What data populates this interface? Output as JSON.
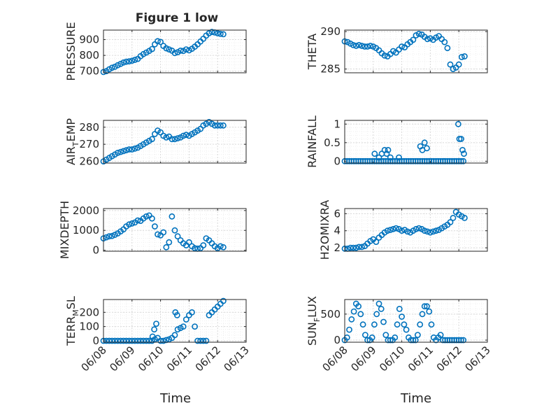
{
  "figure": {
    "title": "Figure 1 low",
    "xlabel": "Time",
    "colors": {
      "marker": "#0072BD",
      "axis": "#262626",
      "grid": "#d9d9d9"
    },
    "x_ticks": [
      "06/08",
      "06/09",
      "06/10",
      "06/11",
      "06/12",
      "06/13"
    ]
  },
  "chart_data": [
    {
      "type": "scatter",
      "panel": "pressure",
      "ylabel": "PRESSURE",
      "ylim": [
        690,
        960
      ],
      "yticks": [
        700,
        800,
        900
      ],
      "ytick_labels": [
        "700",
        "800",
        "900"
      ],
      "xlim": [
        0,
        5
      ],
      "grid": true,
      "x": [
        0.0,
        0.1,
        0.2,
        0.3,
        0.4,
        0.5,
        0.6,
        0.7,
        0.8,
        0.9,
        1.0,
        1.1,
        1.2,
        1.3,
        1.4,
        1.5,
        1.6,
        1.7,
        1.8,
        1.9,
        2.0,
        2.1,
        2.2,
        2.3,
        2.4,
        2.5,
        2.6,
        2.7,
        2.8,
        2.9,
        3.0,
        3.1,
        3.2,
        3.3,
        3.4,
        3.5,
        3.6,
        3.7,
        3.8,
        3.9,
        4.0,
        4.1,
        4.2
      ],
      "y": [
        695,
        700,
        712,
        722,
        728,
        738,
        746,
        755,
        760,
        762,
        766,
        772,
        778,
        795,
        808,
        818,
        828,
        840,
        870,
        890,
        885,
        860,
        845,
        838,
        830,
        815,
        820,
        830,
        828,
        838,
        832,
        842,
        855,
        870,
        888,
        905,
        925,
        940,
        948,
        945,
        940,
        936,
        934
      ]
    },
    {
      "type": "scatter",
      "panel": "theta",
      "ylabel": "THETA",
      "ylim": [
        284.5,
        290.2
      ],
      "yticks": [
        285,
        290
      ],
      "ytick_labels": [
        "285",
        "290"
      ],
      "xlim": [
        0,
        5
      ],
      "grid": true,
      "x": [
        0.0,
        0.1,
        0.2,
        0.3,
        0.4,
        0.5,
        0.6,
        0.7,
        0.8,
        0.9,
        1.0,
        1.1,
        1.2,
        1.3,
        1.4,
        1.5,
        1.6,
        1.7,
        1.8,
        1.9,
        2.0,
        2.1,
        2.2,
        2.3,
        2.4,
        2.5,
        2.6,
        2.7,
        2.8,
        2.9,
        3.0,
        3.1,
        3.2,
        3.3,
        3.4,
        3.5,
        3.6,
        3.7,
        3.8,
        3.9,
        4.0,
        4.1,
        4.2
      ],
      "y": [
        288.7,
        288.6,
        288.4,
        288.2,
        288.1,
        288.2,
        288.1,
        288.0,
        288.0,
        288.1,
        288.0,
        287.8,
        287.5,
        287.1,
        286.8,
        286.7,
        287.0,
        287.4,
        287.2,
        287.6,
        288.0,
        287.9,
        288.3,
        288.6,
        288.9,
        289.5,
        289.7,
        289.6,
        289.3,
        289.0,
        289.1,
        288.9,
        289.2,
        289.4,
        289.0,
        288.6,
        287.8,
        285.6,
        285.0,
        285.2,
        285.6,
        286.6,
        286.7
      ]
    },
    {
      "type": "scatter",
      "panel": "air_temp",
      "ylabel": "AIR",
      "ylabel_sub": "T",
      "ylabel_rest": "EMP",
      "ylim": [
        259,
        284
      ],
      "yticks": [
        260,
        270,
        280
      ],
      "ytick_labels": [
        "260",
        "270",
        "280"
      ],
      "xlim": [
        0,
        5
      ],
      "grid": true,
      "x": [
        0.0,
        0.1,
        0.2,
        0.3,
        0.4,
        0.5,
        0.6,
        0.7,
        0.8,
        0.9,
        1.0,
        1.1,
        1.2,
        1.3,
        1.4,
        1.5,
        1.6,
        1.7,
        1.8,
        1.9,
        2.0,
        2.1,
        2.2,
        2.3,
        2.4,
        2.5,
        2.6,
        2.7,
        2.8,
        2.9,
        3.0,
        3.1,
        3.2,
        3.3,
        3.4,
        3.5,
        3.6,
        3.7,
        3.8,
        3.9,
        4.0,
        4.1,
        4.2
      ],
      "y": [
        260,
        261,
        262,
        263,
        264,
        265,
        265.5,
        266,
        266.5,
        267,
        267,
        267.5,
        268,
        269,
        270,
        271,
        272,
        273,
        276,
        278,
        277,
        275,
        274,
        274.5,
        273,
        273,
        273.5,
        274,
        275,
        275.5,
        275,
        276,
        277,
        278,
        279,
        281,
        282,
        283,
        282,
        281,
        281,
        281,
        281
      ]
    },
    {
      "type": "scatter",
      "panel": "rainfall",
      "ylabel": "RAINFALL",
      "ylim": [
        -0.05,
        1.1
      ],
      "yticks": [
        0,
        0.5,
        1
      ],
      "ytick_labels": [
        "0",
        "0.5",
        "1"
      ],
      "xlim": [
        0,
        5
      ],
      "grid": true,
      "x": [
        0.0,
        0.08,
        0.16,
        0.24,
        0.32,
        0.4,
        0.48,
        0.56,
        0.64,
        0.72,
        0.8,
        0.88,
        0.96,
        1.04,
        1.12,
        1.2,
        1.28,
        1.36,
        1.44,
        1.52,
        1.6,
        1.68,
        1.76,
        1.84,
        1.92,
        2.0,
        2.08,
        2.16,
        2.24,
        2.32,
        2.4,
        2.48,
        2.56,
        2.64,
        2.72,
        2.8,
        2.88,
        2.96,
        3.04,
        3.12,
        3.2,
        3.28,
        3.36,
        3.44,
        3.52,
        3.6,
        3.68,
        3.76,
        3.84,
        3.92,
        4.0,
        4.08,
        4.16,
        1.05,
        1.2,
        1.3,
        1.4,
        1.47,
        1.52,
        1.6,
        1.9,
        2.65,
        2.72,
        2.8,
        2.88,
        3.98,
        4.02,
        4.08,
        4.13,
        4.18
      ],
      "y": [
        0,
        0,
        0,
        0,
        0,
        0,
        0,
        0,
        0,
        0,
        0,
        0,
        0,
        0,
        0,
        0,
        0,
        0,
        0,
        0,
        0,
        0,
        0,
        0,
        0,
        0,
        0,
        0,
        0,
        0,
        0,
        0,
        0,
        0,
        0,
        0,
        0,
        0,
        0,
        0,
        0,
        0,
        0,
        0,
        0,
        0,
        0,
        0,
        0,
        0,
        0,
        0,
        0,
        0.2,
        0.1,
        0.2,
        0.3,
        0.2,
        0.3,
        0.1,
        0.1,
        0.4,
        0.3,
        0.5,
        0.35,
        1.0,
        0.6,
        0.6,
        0.3,
        0.2
      ]
    },
    {
      "type": "scatter",
      "panel": "mixdepth",
      "ylabel": "MIXDEPTH",
      "ylim": [
        -50,
        2100
      ],
      "yticks": [
        0,
        1000,
        2000
      ],
      "ytick_labels": [
        "0",
        "1000",
        "2000"
      ],
      "xlim": [
        0,
        5
      ],
      "grid": true,
      "x": [
        0.0,
        0.1,
        0.2,
        0.3,
        0.4,
        0.5,
        0.6,
        0.7,
        0.8,
        0.9,
        1.0,
        1.1,
        1.2,
        1.3,
        1.4,
        1.5,
        1.6,
        1.7,
        1.8,
        1.9,
        2.0,
        2.1,
        2.2,
        2.3,
        2.4,
        2.5,
        2.6,
        2.7,
        2.8,
        2.9,
        3.0,
        3.1,
        3.2,
        3.3,
        3.4,
        3.5,
        3.6,
        3.7,
        3.8,
        3.9,
        4.0,
        4.1,
        4.2
      ],
      "y": [
        600,
        650,
        700,
        720,
        780,
        850,
        950,
        1050,
        1200,
        1300,
        1350,
        1400,
        1500,
        1480,
        1600,
        1700,
        1750,
        1600,
        1200,
        800,
        750,
        900,
        150,
        400,
        1700,
        1000,
        700,
        500,
        350,
        250,
        400,
        200,
        100,
        80,
        100,
        250,
        600,
        500,
        350,
        200,
        100,
        200,
        150
      ]
    },
    {
      "type": "scatter",
      "panel": "h2omixra",
      "ylabel": "H2OMIXRA",
      "ylim": [
        1.6,
        6.6
      ],
      "yticks": [
        2,
        4,
        6
      ],
      "ytick_labels": [
        "2",
        "4",
        "6"
      ],
      "xlim": [
        0,
        5
      ],
      "grid": true,
      "x": [
        0.0,
        0.1,
        0.2,
        0.3,
        0.4,
        0.5,
        0.6,
        0.7,
        0.8,
        0.9,
        1.0,
        1.1,
        1.2,
        1.3,
        1.4,
        1.5,
        1.6,
        1.7,
        1.8,
        1.9,
        2.0,
        2.1,
        2.2,
        2.3,
        2.4,
        2.5,
        2.6,
        2.7,
        2.8,
        2.9,
        3.0,
        3.1,
        3.2,
        3.3,
        3.4,
        3.5,
        3.6,
        3.7,
        3.8,
        3.9,
        4.0,
        4.1,
        4.2
      ],
      "y": [
        1.9,
        1.9,
        2.0,
        2.0,
        2.0,
        2.1,
        2.1,
        2.2,
        2.5,
        2.8,
        3.0,
        2.7,
        3.2,
        3.5,
        3.8,
        4.0,
        4.1,
        4.2,
        4.3,
        4.2,
        4.0,
        4.1,
        3.9,
        3.8,
        4.0,
        4.2,
        4.3,
        4.2,
        4.0,
        3.9,
        3.8,
        3.9,
        4.0,
        4.1,
        4.3,
        4.5,
        4.7,
        5.0,
        5.5,
        6.2,
        5.9,
        5.7,
        5.5
      ]
    },
    {
      "type": "scatter",
      "panel": "terr_msl",
      "ylabel": "TERR",
      "ylabel_sub": "M",
      "ylabel_rest": "SL",
      "ylim": [
        -10,
        290
      ],
      "yticks": [
        0,
        100,
        200
      ],
      "ytick_labels": [
        "0",
        "100",
        "200"
      ],
      "xlim": [
        0,
        5
      ],
      "grid": true,
      "x": [
        0.0,
        0.1,
        0.2,
        0.3,
        0.4,
        0.5,
        0.6,
        0.7,
        0.8,
        0.9,
        1.0,
        1.1,
        1.2,
        1.3,
        1.4,
        1.5,
        1.6,
        1.7,
        1.8,
        1.9,
        2.0,
        2.1,
        2.2,
        2.3,
        2.4,
        2.5,
        2.6,
        2.7,
        2.8,
        2.9,
        3.0,
        3.1,
        3.2,
        3.3,
        3.4,
        3.5,
        3.6,
        3.7,
        3.8,
        3.9,
        4.0,
        4.1,
        4.2,
        1.72,
        1.78,
        1.85,
        2.52,
        2.58
      ],
      "y": [
        0,
        0,
        0,
        0,
        0,
        0,
        0,
        0,
        0,
        0,
        0,
        0,
        0,
        0,
        0,
        0,
        0,
        0,
        10,
        20,
        0,
        0,
        5,
        10,
        20,
        40,
        80,
        90,
        100,
        150,
        180,
        200,
        100,
        0,
        0,
        0,
        0,
        180,
        200,
        220,
        240,
        260,
        280,
        30,
        80,
        120,
        200,
        180
      ]
    },
    {
      "type": "scatter",
      "panel": "sun_flux",
      "ylabel": "SUN",
      "ylabel_sub": "F",
      "ylabel_rest": "LUX",
      "ylim": [
        -40,
        780
      ],
      "yticks": [
        0,
        500
      ],
      "ytick_labels": [
        "0",
        "500"
      ],
      "xlim": [
        0,
        5
      ],
      "grid": true,
      "x": [
        0.0,
        0.08,
        0.16,
        0.24,
        0.32,
        0.4,
        0.48,
        0.56,
        0.64,
        0.72,
        0.8,
        0.88,
        0.96,
        1.04,
        1.12,
        1.2,
        1.28,
        1.36,
        1.44,
        1.52,
        1.6,
        1.68,
        1.76,
        1.84,
        1.92,
        2.0,
        2.08,
        2.16,
        2.24,
        2.32,
        2.4,
        2.48,
        2.56,
        2.64,
        2.72,
        2.8,
        2.88,
        2.96,
        3.04,
        3.12,
        3.2,
        3.28,
        3.36,
        3.44,
        3.52,
        3.6,
        3.68,
        3.76,
        3.84,
        3.92,
        4.0,
        4.08,
        4.16
      ],
      "y": [
        0,
        50,
        200,
        400,
        550,
        700,
        650,
        500,
        300,
        100,
        0,
        0,
        50,
        300,
        500,
        700,
        600,
        350,
        100,
        0,
        0,
        0,
        50,
        300,
        600,
        450,
        300,
        200,
        50,
        0,
        0,
        0,
        100,
        300,
        500,
        650,
        650,
        550,
        300,
        50,
        0,
        50,
        100,
        0,
        0,
        0,
        0,
        0,
        0,
        0,
        0,
        0,
        0
      ]
    }
  ]
}
